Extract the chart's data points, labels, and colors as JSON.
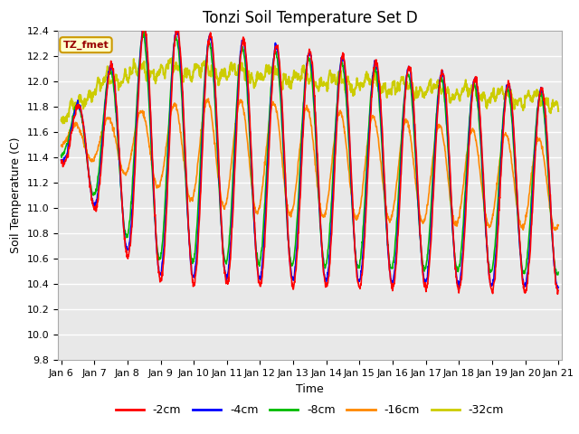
{
  "title": "Tonzi Soil Temperature Set D",
  "xlabel": "Time",
  "ylabel": "Soil Temperature (C)",
  "ylim": [
    9.8,
    12.4
  ],
  "xlim": [
    -0.1,
    15.1
  ],
  "xtick_labels": [
    "Jan 6",
    "Jan 7",
    "Jan 8",
    "Jan 9",
    "Jan 10",
    "Jan 11",
    "Jan 12",
    "Jan 13",
    "Jan 14",
    "Jan 15",
    "Jan 16",
    "Jan 17",
    "Jan 18",
    "Jan 19",
    "Jan 20",
    "Jan 21"
  ],
  "xtick_positions": [
    0,
    1,
    2,
    3,
    4,
    5,
    6,
    7,
    8,
    9,
    10,
    11,
    12,
    13,
    14,
    15
  ],
  "ytick_values": [
    9.8,
    10.0,
    10.2,
    10.4,
    10.6,
    10.8,
    11.0,
    11.2,
    11.4,
    11.6,
    11.8,
    12.0,
    12.2,
    12.4
  ],
  "colors": {
    "-2cm": "#ff0000",
    "-4cm": "#0000ff",
    "-8cm": "#00bb00",
    "-16cm": "#ff8800",
    "-32cm": "#cccc00"
  },
  "legend_label": "TZ_fmet",
  "legend_box_facecolor": "#ffffcc",
  "legend_box_edgecolor": "#cc9900",
  "plot_bg": "#e8e8e8",
  "fig_bg": "#ffffff",
  "grid_color": "#ffffff",
  "title_fontsize": 12,
  "label_fontsize": 9,
  "tick_fontsize": 8,
  "linewidth": 1.2
}
